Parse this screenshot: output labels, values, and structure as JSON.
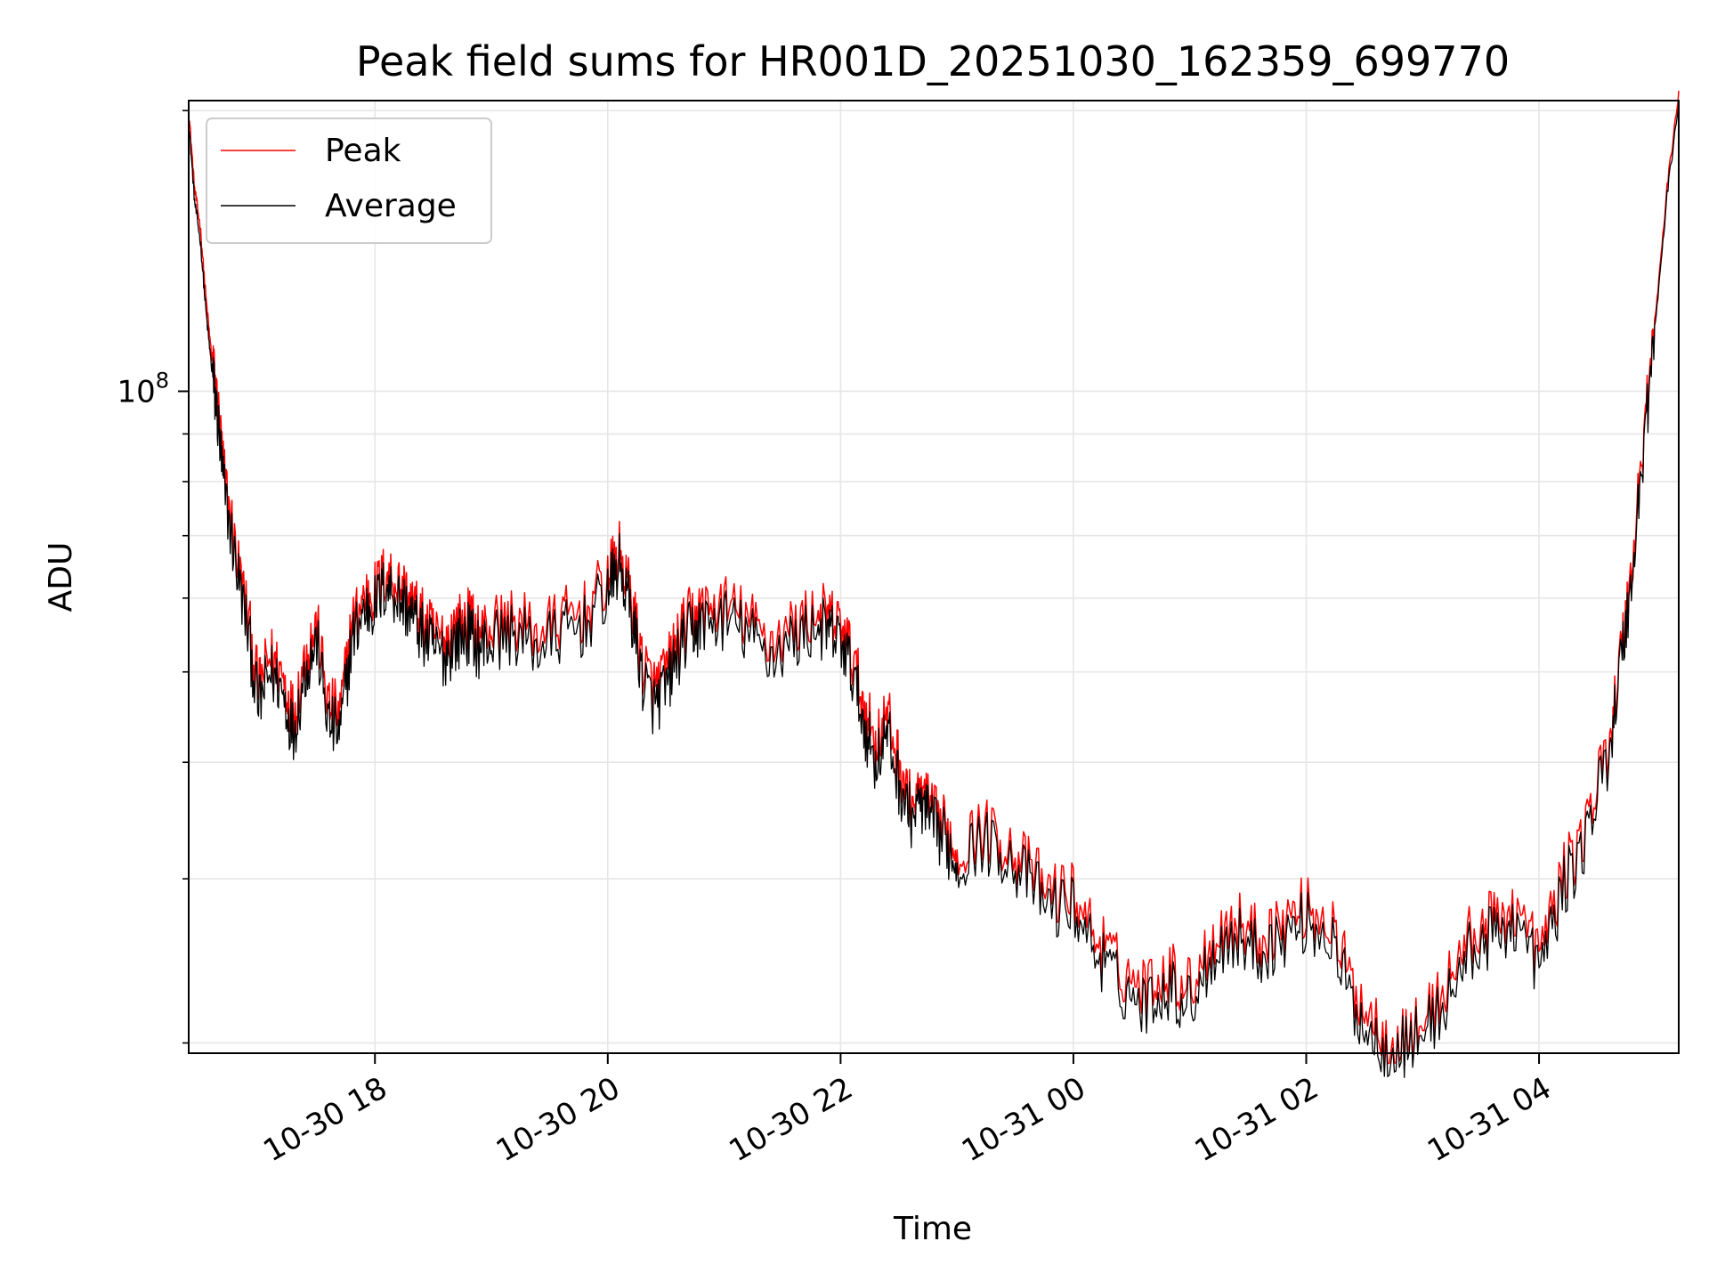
{
  "chart_data": {
    "type": "line",
    "title": "Peak field sums for HR001D_20251030_162359_699770",
    "xlabel": "Time",
    "ylabel": "ADU",
    "y_scale": "log",
    "x_range_hours": [
      16.4,
      29.2
    ],
    "ylim": [
      19500000,
      205000000
    ],
    "y_major_ticks": [
      {
        "value": 100000000,
        "base": "10",
        "exponent": "8"
      }
    ],
    "y_minor_ticks": [
      20000000,
      30000000,
      40000000,
      50000000,
      60000000,
      70000000,
      80000000,
      90000000,
      200000000
    ],
    "x_ticks": [
      {
        "hours": 18,
        "label": "10-30 18"
      },
      {
        "hours": 20,
        "label": "10-30 20"
      },
      {
        "hours": 22,
        "label": "10-30 22"
      },
      {
        "hours": 24,
        "label": "10-31 00"
      },
      {
        "hours": 26,
        "label": "10-31 02"
      },
      {
        "hours": 28,
        "label": "10-31 04"
      }
    ],
    "grid": true,
    "legend_position": "top-left",
    "series": [
      {
        "name": "Peak",
        "color": "#ff0000",
        "x_hours": [
          16.4,
          16.45,
          16.5,
          16.55,
          16.6,
          16.65,
          16.7,
          16.8,
          16.9,
          17.0,
          17.1,
          17.2,
          17.3,
          17.4,
          17.5,
          17.6,
          17.7,
          17.8,
          17.9,
          18.0,
          18.1,
          18.2,
          18.3,
          18.4,
          18.5,
          18.6,
          18.7,
          18.8,
          18.9,
          19.0,
          19.2,
          19.4,
          19.6,
          19.8,
          20.0,
          20.1,
          20.2,
          20.3,
          20.4,
          20.5,
          20.6,
          20.7,
          20.8,
          21.0,
          21.2,
          21.4,
          21.6,
          21.8,
          21.9,
          22.0,
          22.1,
          22.2,
          22.3,
          22.4,
          22.5,
          22.6,
          22.7,
          22.8,
          22.9,
          23.0,
          23.2,
          23.4,
          23.6,
          23.8,
          24.0,
          24.2,
          24.4,
          24.6,
          24.8,
          25.0,
          25.2,
          25.4,
          25.6,
          25.8,
          26.0,
          26.2,
          26.4,
          26.6,
          26.8,
          27.0,
          27.2,
          27.4,
          27.6,
          27.8,
          28.0,
          28.2,
          28.4,
          28.6,
          28.7,
          28.8,
          28.9,
          29.0,
          29.1,
          29.2
        ],
        "values": [
          200000000,
          165000000,
          150000000,
          125000000,
          108000000,
          96000000,
          82000000,
          68000000,
          58000000,
          48000000,
          52000000,
          50000000,
          45000000,
          52000000,
          56000000,
          46000000,
          45000000,
          56000000,
          60000000,
          61000000,
          64000000,
          62000000,
          60000000,
          57000000,
          55000000,
          54000000,
          56000000,
          57000000,
          55000000,
          56000000,
          57000000,
          55000000,
          57000000,
          58000000,
          63000000,
          67000000,
          60000000,
          51000000,
          48000000,
          50000000,
          54000000,
          57000000,
          58000000,
          59000000,
          57000000,
          54000000,
          56000000,
          58000000,
          57000000,
          56000000,
          52000000,
          46000000,
          42000000,
          45000000,
          40000000,
          36000000,
          37000000,
          35000000,
          34000000,
          32000000,
          34000000,
          33000000,
          31000000,
          29000000,
          29000000,
          26000000,
          24000000,
          23000000,
          24000000,
          23000000,
          26000000,
          27000000,
          26000000,
          27000000,
          28000000,
          27000000,
          23000000,
          21000000,
          20000000,
          21000000,
          23000000,
          26000000,
          27000000,
          28000000,
          25000000,
          30000000,
          34000000,
          42000000,
          52000000,
          65000000,
          90000000,
          120000000,
          165000000,
          210000000
        ]
      },
      {
        "name": "Average",
        "color": "#000000",
        "x_hours": [
          16.4,
          16.45,
          16.5,
          16.55,
          16.6,
          16.65,
          16.7,
          16.8,
          16.9,
          17.0,
          17.1,
          17.2,
          17.3,
          17.4,
          17.5,
          17.6,
          17.7,
          17.8,
          17.9,
          18.0,
          18.1,
          18.2,
          18.3,
          18.4,
          18.5,
          18.6,
          18.7,
          18.8,
          18.9,
          19.0,
          19.2,
          19.4,
          19.6,
          19.8,
          20.0,
          20.1,
          20.2,
          20.3,
          20.4,
          20.5,
          20.6,
          20.7,
          20.8,
          21.0,
          21.2,
          21.4,
          21.6,
          21.8,
          21.9,
          22.0,
          22.1,
          22.2,
          22.3,
          22.4,
          22.5,
          22.6,
          22.7,
          22.8,
          22.9,
          23.0,
          23.2,
          23.4,
          23.6,
          23.8,
          24.0,
          24.2,
          24.4,
          24.6,
          24.8,
          25.0,
          25.2,
          25.4,
          25.6,
          25.8,
          26.0,
          26.2,
          26.4,
          26.6,
          26.8,
          27.0,
          27.2,
          27.4,
          27.6,
          27.8,
          28.0,
          28.2,
          28.4,
          28.6,
          28.7,
          28.8,
          28.9,
          29.0,
          29.1,
          29.2
        ],
        "values": [
          195000000,
          160000000,
          145000000,
          121000000,
          105000000,
          93000000,
          79000000,
          66000000,
          56000000,
          46000000,
          50000000,
          48000000,
          43000000,
          50000000,
          54000000,
          44000000,
          43000000,
          54000000,
          58000000,
          59000000,
          62000000,
          60000000,
          58000000,
          55000000,
          53000000,
          52000000,
          54000000,
          55000000,
          53000000,
          54000000,
          55000000,
          53000000,
          55000000,
          56000000,
          61000000,
          65000000,
          58000000,
          49000000,
          46000000,
          48000000,
          52000000,
          55000000,
          56000000,
          57000000,
          55000000,
          52000000,
          54000000,
          56000000,
          55000000,
          54000000,
          50000000,
          44000000,
          40000000,
          43000000,
          38000000,
          35000000,
          36000000,
          34000000,
          33000000,
          31000000,
          33000000,
          32000000,
          30000000,
          28000000,
          28000000,
          25000000,
          23000000,
          22000000,
          23000000,
          22000000,
          25000000,
          26000000,
          25000000,
          26000000,
          27000000,
          26000000,
          22000000,
          20000000,
          19700000,
          20500000,
          22000000,
          25000000,
          26000000,
          27000000,
          24000000,
          29000000,
          33000000,
          41000000,
          51000000,
          63000000,
          88000000,
          118000000,
          162000000,
          205000000
        ]
      }
    ]
  }
}
